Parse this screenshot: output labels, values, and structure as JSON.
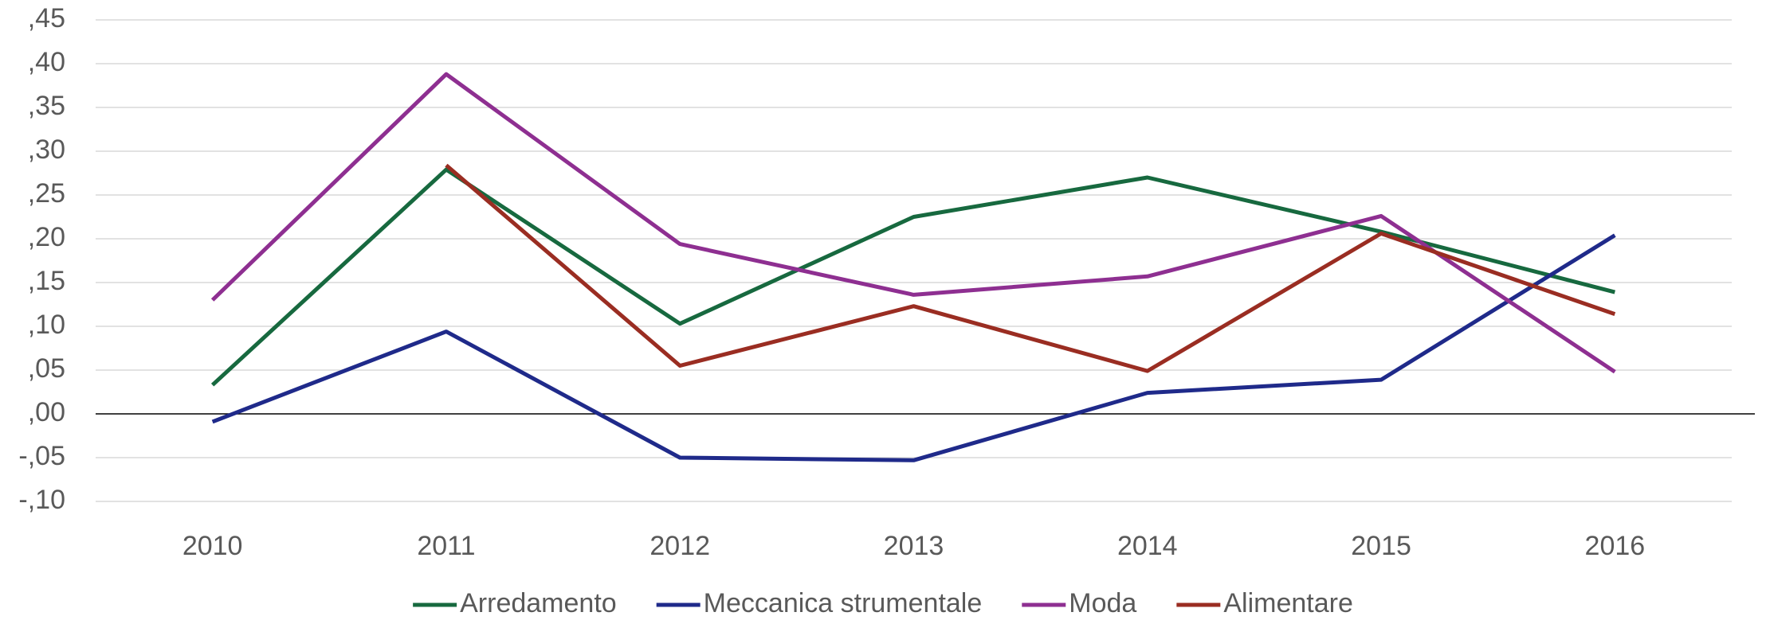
{
  "chart_data": {
    "type": "line",
    "categories": [
      "2010",
      "2011",
      "2012",
      "2013",
      "2014",
      "2015",
      "2016"
    ],
    "series": [
      {
        "name": "Arredamento",
        "color": "#17693f",
        "values": [
          0.033,
          0.279,
          0.103,
          0.225,
          0.27,
          0.208,
          0.139
        ]
      },
      {
        "name": "Meccanica strumentale",
        "color": "#1f2a8a",
        "values": [
          -0.009,
          0.094,
          -0.05,
          -0.053,
          0.024,
          0.039,
          0.204
        ]
      },
      {
        "name": "Moda",
        "color": "#8e2f91",
        "values": [
          0.13,
          0.388,
          0.194,
          0.136,
          0.157,
          0.226,
          0.048
        ]
      },
      {
        "name": "Alimentare",
        "color": "#9a2d22",
        "values": [
          null,
          0.284,
          0.055,
          0.123,
          0.049,
          0.206,
          0.114
        ]
      }
    ],
    "ylim": [
      -0.1,
      0.45
    ],
    "yticks": [
      {
        "value": -0.1,
        "label": "-,10"
      },
      {
        "value": -0.05,
        "label": "-,05"
      },
      {
        "value": 0,
        "label": ",00"
      },
      {
        "value": 0.05,
        "label": ",05"
      },
      {
        "value": 0.1,
        "label": ",10"
      },
      {
        "value": 0.15,
        "label": ",15"
      },
      {
        "value": 0.2,
        "label": ",20"
      },
      {
        "value": 0.25,
        "label": ",25"
      },
      {
        "value": 0.3,
        "label": ",30"
      },
      {
        "value": 0.35,
        "label": ",35"
      },
      {
        "value": 0.4,
        "label": ",40"
      },
      {
        "value": 0.45,
        "label": ",45"
      }
    ],
    "grid": true,
    "legend": "bottom"
  }
}
